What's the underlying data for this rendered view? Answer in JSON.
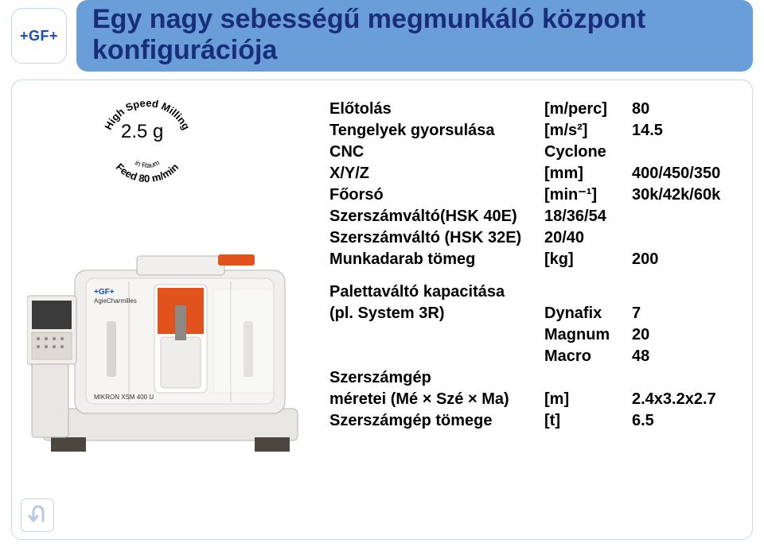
{
  "logo": {
    "text": "+GF+"
  },
  "title": {
    "line1": "Egy nagy sebességű megmunkáló központ",
    "line2": "konfigurációja"
  },
  "circle": {
    "top_text": "High Speed Milling",
    "bottom_text": "Feed 80 m/min",
    "middle_text": "in Raum",
    "accel": "2.5 g",
    "font_size_circle": 13,
    "font_size_accel": 24
  },
  "specs": {
    "rows": [
      {
        "c1": "Előtolás",
        "c2": "[m/perc]",
        "c3": "80"
      },
      {
        "c1": "Tengelyek gyorsulása",
        "c2": "[m/s²]",
        "c3": "14.5"
      },
      {
        "c1": "CNC",
        "c2": "Cyclone",
        "c3": ""
      },
      {
        "c1": "X/Y/Z",
        "c2": "[mm]",
        "c3": "400/450/350"
      },
      {
        "c1": "Főorsó",
        "c2": "[min⁻¹]",
        "c3": "30k/42k/60k"
      },
      {
        "c1": "Szerszámváltó(HSK 40E)",
        "c2": "18/36/54",
        "c3": ""
      },
      {
        "c1": "Szerszámváltó (HSK 32E)",
        "c2": "20/40",
        "c3": ""
      },
      {
        "c1": "Munkadarab tömeg",
        "c2": "[kg]",
        "c3": "200"
      }
    ],
    "pallet_header": "Palettaváltó kapacitása",
    "pallet_rows": [
      {
        "c1": "(pl. System 3R)",
        "c2": "Dynafix",
        "c3": "7"
      },
      {
        "c1": "",
        "c2": "Magnum",
        "c3": "20"
      },
      {
        "c1": "",
        "c2": "Macro",
        "c3": "48"
      }
    ],
    "footer_rows": [
      {
        "c1": "Szerszámgép",
        "c2": "",
        "c3": ""
      },
      {
        "c1": "méretei (Mé × Szé × Ma)",
        "c2": "[m]",
        "c3": "2.4x3.2x2.7"
      },
      {
        "c1": "Szerszámgép tömege",
        "c2": "[t]",
        "c3": "6.5"
      }
    ]
  },
  "machine": {
    "brand_top": "+GF+",
    "brand_sub": "AgieCharmilles",
    "model": "MIKRON XSM 400 U",
    "body_color": "#f0efed",
    "panel_color": "#e8e7e4",
    "accent_color": "#e2521d",
    "dark_color": "#4b4640",
    "outline": "#b9b6b1"
  },
  "style": {
    "title_bg": "#6a9ed8",
    "title_color": "#1a2d7a",
    "border_color": "#c9d6ea",
    "logo_color": "#1a4fb0",
    "text_color": "#000000"
  },
  "back_icon": {
    "name": "u-turn-back-icon",
    "stroke": "#c9d6ea"
  }
}
